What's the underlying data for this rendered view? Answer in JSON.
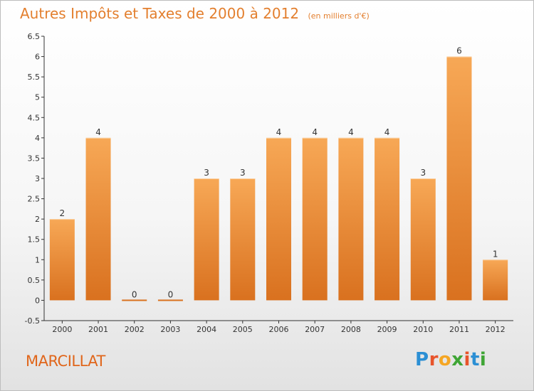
{
  "title": "Autres Impôts et Taxes de 2000 à 2012",
  "subtitle": "(en milliers d'€)",
  "location": "MARCILLAT",
  "brand": "Proxiti",
  "colors": {
    "title": "#e37f2e",
    "bar_light": "#f7a856",
    "bar_dark": "#d9711f",
    "axis": "#333333",
    "grid": "#dddddd"
  },
  "chart_data": {
    "type": "bar",
    "categories": [
      "2000",
      "2001",
      "2002",
      "2003",
      "2004",
      "2005",
      "2006",
      "2007",
      "2008",
      "2009",
      "2010",
      "2011",
      "2012"
    ],
    "values": [
      2,
      4,
      0,
      0,
      3,
      3,
      4,
      4,
      4,
      4,
      3,
      6,
      1
    ],
    "data_labels": [
      "2",
      "4",
      "0",
      "0",
      "3",
      "3",
      "4",
      "4",
      "4",
      "4",
      "3",
      "6",
      "1"
    ],
    "y_ticks": [
      "-0.5",
      "0",
      "0.5",
      "1",
      "1.5",
      "2",
      "2.5",
      "3",
      "3.5",
      "4",
      "4.5",
      "5",
      "5.5",
      "6",
      "6.5"
    ],
    "ylim": [
      -0.5,
      6.5
    ],
    "grid": false,
    "legend": false
  }
}
